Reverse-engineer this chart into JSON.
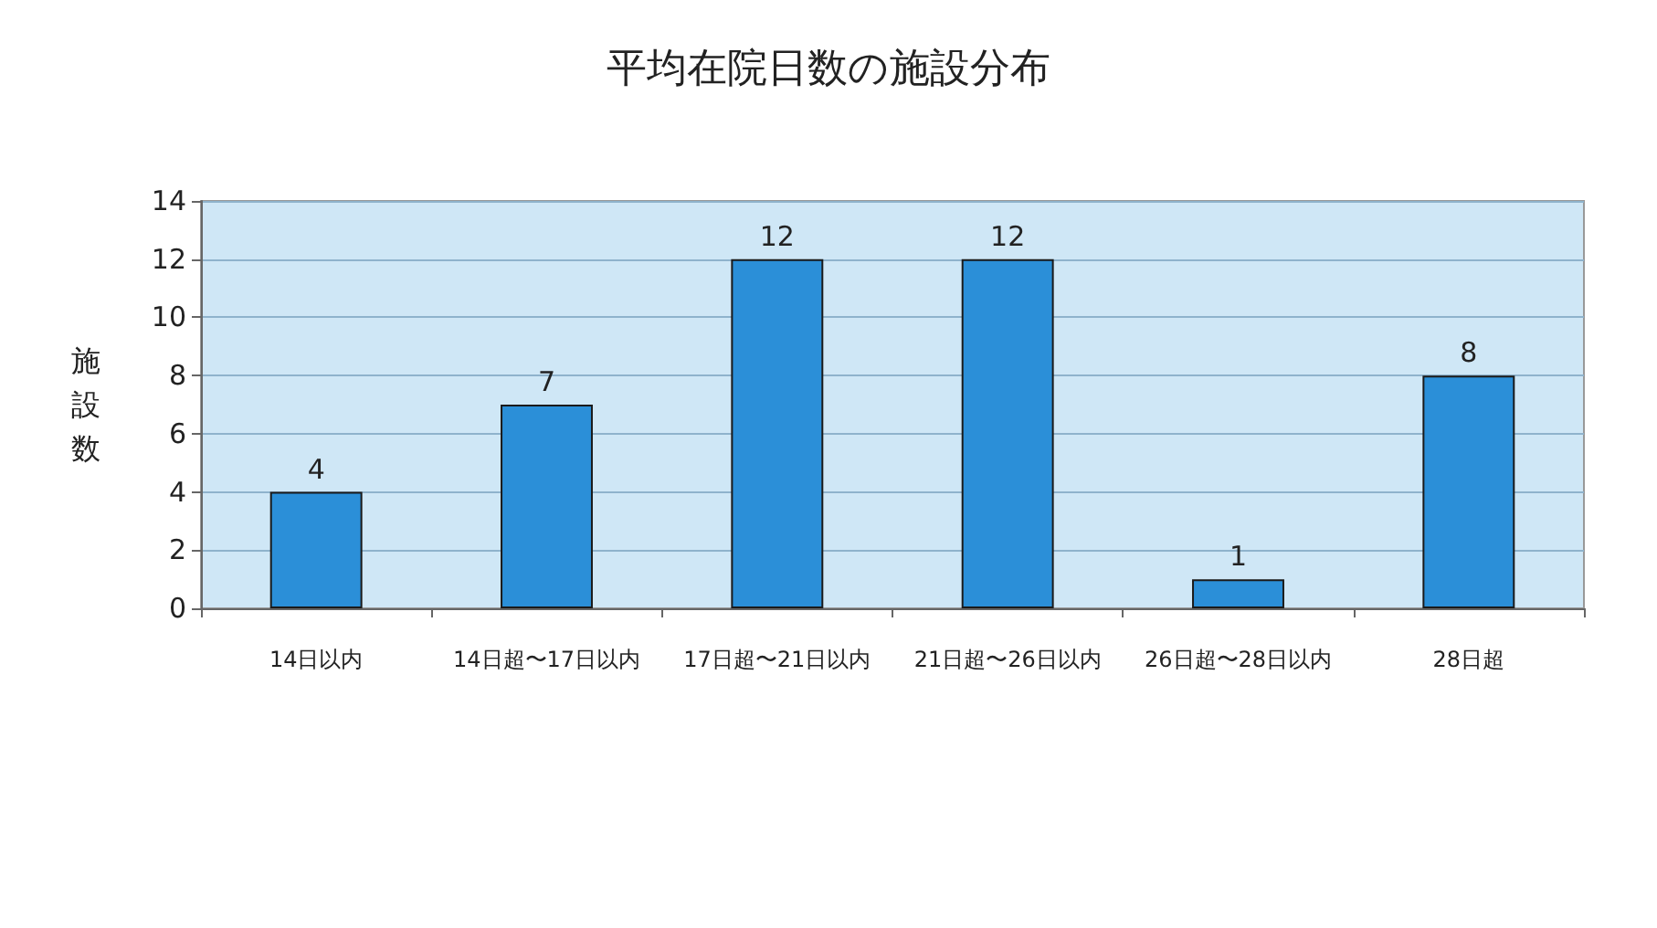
{
  "chart_data": {
    "type": "bar",
    "title": "平均在院日数の施設分布",
    "ylabel": "施設数",
    "categories": [
      "14日以内",
      "14日超〜17日以内",
      "17日超〜21日以内",
      "21日超〜26日以内",
      "26日超〜28日以内",
      "28日超"
    ],
    "values": [
      4,
      7,
      12,
      12,
      1,
      8
    ],
    "color": "#2b8fd8",
    "ylim": [
      0,
      14
    ],
    "yticks": [
      0,
      2,
      4,
      6,
      8,
      10,
      12,
      14
    ],
    "grid": "y",
    "data_labels": true
  }
}
